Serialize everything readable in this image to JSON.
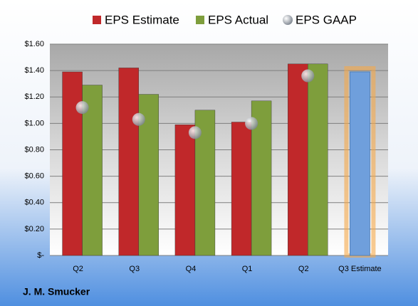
{
  "chart_data": {
    "type": "bar",
    "categories": [
      "Q2",
      "Q3",
      "Q4",
      "Q1",
      "Q2",
      "Q3 Estimate"
    ],
    "series": [
      {
        "name": "EPS Estimate",
        "color": "#c0282a",
        "values": [
          1.39,
          1.42,
          0.99,
          1.01,
          1.45,
          1.39
        ]
      },
      {
        "name": "EPS Actual",
        "color": "#7e9e3c",
        "values": [
          1.29,
          1.22,
          1.1,
          1.17,
          1.45,
          null
        ]
      },
      {
        "name": "EPS GAAP",
        "color": "#a4abb3",
        "marker": "sphere",
        "values": [
          1.12,
          1.03,
          0.93,
          1.0,
          1.36,
          null
        ]
      }
    ],
    "highlight": {
      "series": 0,
      "index": 5,
      "color": "#6f9fdc",
      "glow": "#f5a84a"
    },
    "ylim": [
      0,
      1.6
    ],
    "yticks": [
      {
        "value": 0,
        "label": "$-"
      },
      {
        "value": 0.2,
        "label": "$0.20"
      },
      {
        "value": 0.4,
        "label": "$0.40"
      },
      {
        "value": 0.6,
        "label": "$0.60"
      },
      {
        "value": 0.8,
        "label": "$0.80"
      },
      {
        "value": 1.0,
        "label": "$1.00"
      },
      {
        "value": 1.2,
        "label": "$1.20"
      },
      {
        "value": 1.4,
        "label": "$1.40"
      },
      {
        "value": 1.6,
        "label": "$1.60"
      }
    ],
    "grid": true,
    "caption": "J. M. Smucker"
  }
}
